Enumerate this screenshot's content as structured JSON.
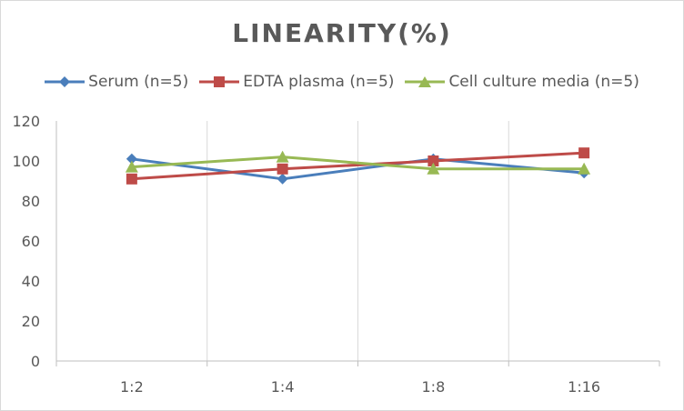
{
  "chart_data": {
    "type": "line",
    "title": "LINEARITY(%)",
    "xlabel": "",
    "ylabel": "",
    "categories": [
      "1:2",
      "1:4",
      "1:8",
      "1:16"
    ],
    "ylim": [
      0,
      120
    ],
    "yticks": [
      0,
      20,
      40,
      60,
      80,
      100,
      120
    ],
    "grid": "vertical",
    "legend": "top",
    "series": [
      {
        "name": "Serum (n=5)",
        "values": [
          101,
          91,
          101,
          94
        ],
        "color": "#4a7ebb",
        "marker": "diamond"
      },
      {
        "name": "EDTA plasma (n=5)",
        "values": [
          91,
          96,
          100,
          104
        ],
        "color": "#be4b48",
        "marker": "square"
      },
      {
        "name": "Cell culture media (n=5)",
        "values": [
          97,
          102,
          96,
          96
        ],
        "color": "#98b954",
        "marker": "triangle"
      }
    ]
  }
}
